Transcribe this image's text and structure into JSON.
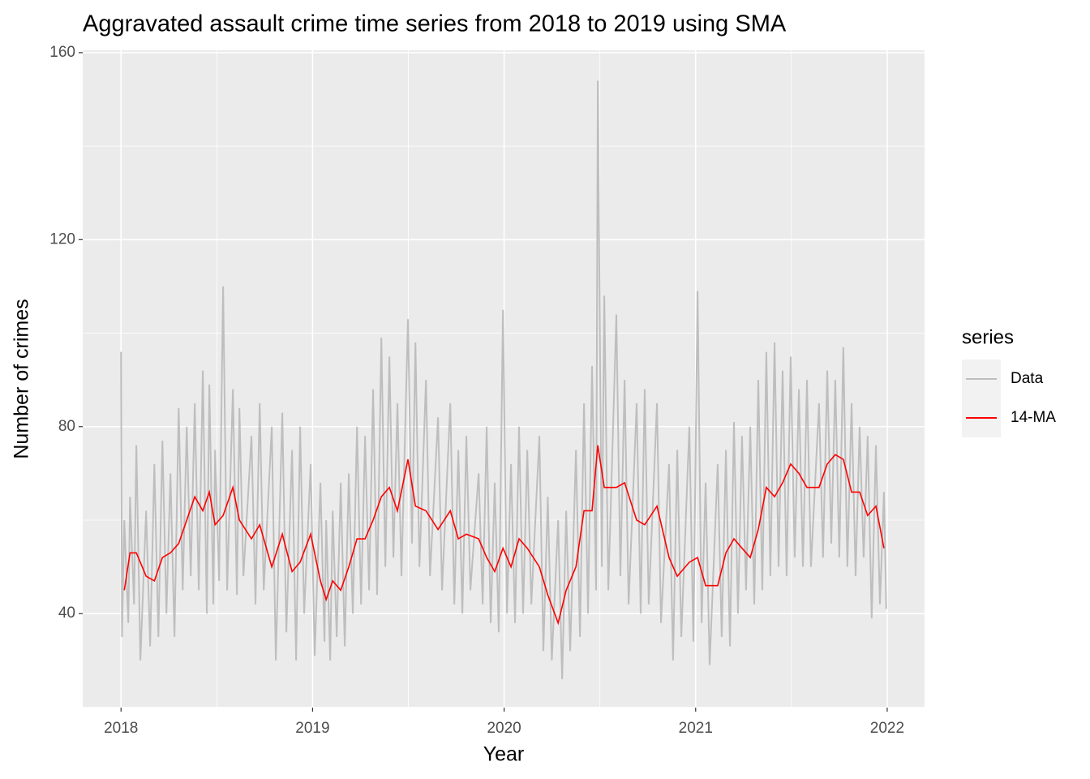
{
  "chart_data": {
    "type": "line",
    "title": "Aggravated assault crime time series from 2018 to 2019 using SMA",
    "x_label": "Year",
    "y_label": "Number of crimes",
    "legend_title": "series",
    "legend_position": "right",
    "grid": true,
    "xlim": [
      2017.8,
      2022.195
    ],
    "xticks": [
      2018,
      2019,
      2020,
      2021,
      2022
    ],
    "ylim": [
      19.9,
      160.5
    ],
    "yticks": [
      40,
      80,
      120,
      160
    ],
    "series": [
      {
        "name": "Data",
        "color": "#bebebe",
        "x": [
          2018.0,
          2018.005,
          2018.017,
          2018.038,
          2018.047,
          2018.068,
          2018.08,
          2018.101,
          2018.131,
          2018.152,
          2018.174,
          2018.195,
          2018.216,
          2018.237,
          2018.258,
          2018.279,
          2018.301,
          2018.322,
          2018.343,
          2018.364,
          2018.385,
          2018.406,
          2018.427,
          2018.448,
          2018.461,
          2018.482,
          2018.491,
          2018.512,
          2018.533,
          2018.554,
          2018.584,
          2018.605,
          2018.618,
          2018.639,
          2018.681,
          2018.702,
          2018.724,
          2018.745,
          2018.787,
          2018.808,
          2018.842,
          2018.863,
          2018.893,
          2018.914,
          2018.935,
          2018.956,
          2018.99,
          2019.011,
          2019.041,
          2019.062,
          2019.071,
          2019.092,
          2019.105,
          2019.126,
          2019.147,
          2019.168,
          2019.189,
          2019.21,
          2019.232,
          2019.253,
          2019.274,
          2019.295,
          2019.316,
          2019.337,
          2019.359,
          2019.38,
          2019.401,
          2019.422,
          2019.443,
          2019.464,
          2019.498,
          2019.519,
          2019.537,
          2019.558,
          2019.592,
          2019.613,
          2019.655,
          2019.676,
          2019.719,
          2019.74,
          2019.761,
          2019.782,
          2019.803,
          2019.824,
          2019.867,
          2019.888,
          2019.909,
          2019.93,
          2019.951,
          2019.972,
          2019.994,
          2020.015,
          2020.036,
          2020.057,
          2020.078,
          2020.099,
          2020.121,
          2020.142,
          2020.184,
          2020.205,
          2020.228,
          2020.249,
          2020.282,
          2020.303,
          2020.324,
          2020.345,
          2020.375,
          2020.396,
          2020.417,
          2020.438,
          2020.459,
          2020.48,
          2020.489,
          2020.51,
          2020.523,
          2020.544,
          2020.586,
          2020.607,
          2020.629,
          2020.65,
          2020.692,
          2020.713,
          2020.734,
          2020.755,
          2020.798,
          2020.819,
          2020.861,
          2020.882,
          2020.904,
          2020.925,
          2020.967,
          2020.988,
          2021.01,
          2021.031,
          2021.052,
          2021.073,
          2021.115,
          2021.136,
          2021.158,
          2021.179,
          2021.2,
          2021.221,
          2021.242,
          2021.263,
          2021.285,
          2021.306,
          2021.327,
          2021.348,
          2021.369,
          2021.39,
          2021.412,
          2021.433,
          2021.454,
          2021.475,
          2021.496,
          2021.517,
          2021.539,
          2021.56,
          2021.581,
          2021.602,
          2021.644,
          2021.665,
          2021.687,
          2021.708,
          2021.729,
          2021.75,
          2021.771,
          2021.792,
          2021.814,
          2021.835,
          2021.856,
          2021.877,
          2021.898,
          2021.919,
          2021.941,
          2021.962,
          2021.983,
          2021.995
        ],
        "values": [
          96,
          35,
          60,
          38,
          65,
          42,
          76,
          30,
          62,
          33,
          72,
          35,
          77,
          40,
          70,
          35,
          84,
          45,
          80,
          48,
          85,
          45,
          92,
          40,
          89,
          42,
          75,
          47,
          110,
          45,
          88,
          44,
          84,
          48,
          78,
          42,
          85,
          45,
          80,
          30,
          83,
          36,
          75,
          30,
          80,
          40,
          72,
          31,
          68,
          34,
          60,
          30,
          62,
          35,
          68,
          33,
          70,
          40,
          80,
          42,
          78,
          45,
          88,
          44,
          99,
          50,
          95,
          52,
          85,
          48,
          103,
          55,
          98,
          50,
          90,
          48,
          82,
          45,
          85,
          42,
          75,
          40,
          78,
          45,
          70,
          42,
          80,
          38,
          68,
          36,
          105,
          40,
          72,
          38,
          80,
          40,
          75,
          42,
          78,
          32,
          65,
          30,
          60,
          26,
          62,
          32,
          75,
          35,
          85,
          40,
          93,
          45,
          154,
          50,
          108,
          45,
          104,
          48,
          90,
          42,
          85,
          40,
          88,
          42,
          85,
          38,
          72,
          30,
          75,
          35,
          80,
          34,
          109,
          38,
          68,
          29,
          72,
          35,
          75,
          33,
          81,
          40,
          78,
          45,
          80,
          42,
          90,
          45,
          96,
          48,
          98,
          50,
          92,
          48,
          95,
          52,
          88,
          50,
          90,
          50,
          85,
          52,
          92,
          55,
          90,
          52,
          97,
          50,
          85,
          48,
          80,
          52,
          78,
          39,
          76,
          42,
          66,
          41
        ]
      },
      {
        "name": "14-MA",
        "color": "#ff0000",
        "x": [
          2018.017,
          2018.047,
          2018.08,
          2018.131,
          2018.174,
          2018.216,
          2018.258,
          2018.301,
          2018.343,
          2018.385,
          2018.427,
          2018.461,
          2018.491,
          2018.533,
          2018.584,
          2018.618,
          2018.681,
          2018.724,
          2018.787,
          2018.842,
          2018.893,
          2018.935,
          2018.99,
          2019.041,
          2019.071,
          2019.105,
          2019.147,
          2019.189,
          2019.232,
          2019.274,
          2019.316,
          2019.359,
          2019.401,
          2019.443,
          2019.498,
          2019.537,
          2019.592,
          2019.655,
          2019.719,
          2019.761,
          2019.803,
          2019.867,
          2019.909,
          2019.951,
          2019.994,
          2020.036,
          2020.078,
          2020.121,
          2020.184,
          2020.228,
          2020.282,
          2020.324,
          2020.375,
          2020.417,
          2020.459,
          2020.489,
          2020.523,
          2020.586,
          2020.629,
          2020.692,
          2020.734,
          2020.798,
          2020.861,
          2020.904,
          2020.967,
          2021.01,
          2021.052,
          2021.115,
          2021.158,
          2021.2,
          2021.242,
          2021.285,
          2021.327,
          2021.369,
          2021.412,
          2021.454,
          2021.496,
          2021.539,
          2021.581,
          2021.644,
          2021.687,
          2021.729,
          2021.771,
          2021.814,
          2021.856,
          2021.898,
          2021.941,
          2021.983
        ],
        "values": [
          45,
          53,
          53,
          48,
          47,
          52,
          53,
          55,
          60,
          65,
          62,
          66,
          59,
          61,
          67,
          60,
          56,
          59,
          50,
          57,
          49,
          51,
          57,
          47,
          43,
          47,
          45,
          50,
          56,
          56,
          60,
          65,
          67,
          62,
          73,
          63,
          62,
          58,
          62,
          56,
          57,
          56,
          52,
          49,
          54,
          50,
          56,
          54,
          50,
          44,
          38,
          45,
          50,
          62,
          62,
          76,
          67,
          67,
          68,
          60,
          59,
          63,
          52,
          48,
          51,
          52,
          46,
          46,
          53,
          56,
          54,
          52,
          58,
          67,
          65,
          68,
          72,
          70,
          67,
          67,
          72,
          74,
          73,
          66,
          66,
          61,
          63,
          54
        ]
      }
    ]
  }
}
